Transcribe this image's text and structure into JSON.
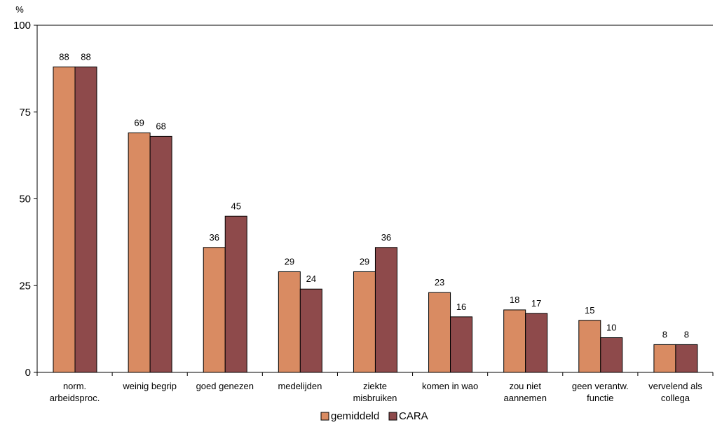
{
  "chart_data": {
    "type": "bar",
    "title": "",
    "xlabel": "",
    "ylabel": "%",
    "ylim": [
      0,
      100
    ],
    "yticks": [
      "0",
      "25",
      "50",
      "75",
      "100"
    ],
    "grid": false,
    "legend_position": "bottom-center",
    "categories": [
      [
        "norm.",
        "arbeidsproc."
      ],
      [
        "weinig begrip"
      ],
      [
        "goed genezen"
      ],
      [
        "medelijden"
      ],
      [
        "ziekte",
        "misbruiken"
      ],
      [
        "komen in wao"
      ],
      [
        "zou niet",
        "aannemen"
      ],
      [
        "geen verantw.",
        "functie"
      ],
      [
        "vervelend als",
        "collega"
      ]
    ],
    "series": [
      {
        "name": "gemiddeld",
        "color": "#D98B62",
        "values": [
          88,
          69,
          36,
          29,
          29,
          23,
          18,
          15,
          8
        ]
      },
      {
        "name": "CARA",
        "color": "#8E4A4B",
        "values": [
          88,
          68,
          45,
          24,
          36,
          16,
          17,
          10,
          8
        ]
      }
    ]
  }
}
